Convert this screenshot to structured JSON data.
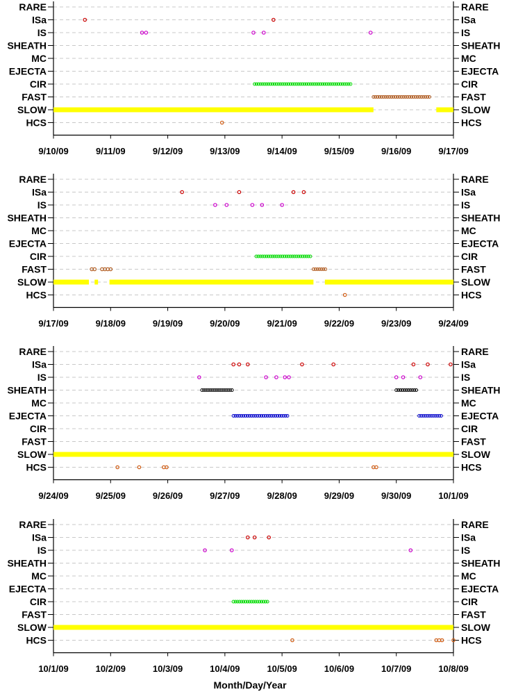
{
  "xlabel": "Month/Day/Year",
  "chart_data": [
    {
      "type": "scatter",
      "categories": [
        "RARE",
        "ISa",
        "IS",
        "SHEATH",
        "MC",
        "EJECTA",
        "CIR",
        "FAST",
        "SLOW",
        "HCS"
      ],
      "x_ticks": [
        "9/10/09",
        "9/11/09",
        "9/12/09",
        "9/13/09",
        "9/14/09",
        "9/15/09",
        "9/16/09",
        "9/17/09"
      ],
      "grid": true,
      "series": [
        {
          "category": "ISa",
          "color": "#cc0000",
          "x": [
            0.55,
            3.85
          ]
        },
        {
          "category": "IS",
          "color": "#cc00cc",
          "x": [
            1.55,
            1.62,
            3.5,
            3.68,
            5.55
          ]
        },
        {
          "category": "CIR",
          "color": "#00dd00",
          "range": [
            3.52,
            5.2
          ]
        },
        {
          "category": "FAST",
          "color": "#b05a1e",
          "range": [
            5.6,
            6.6
          ]
        },
        {
          "category": "SLOW",
          "color": "#ffff00",
          "ranges": [
            [
              0,
              5.6
            ],
            [
              6.7,
              7
            ]
          ]
        },
        {
          "category": "HCS",
          "color": "#d05a10",
          "x": [
            2.95
          ]
        }
      ]
    },
    {
      "type": "scatter",
      "categories": [
        "RARE",
        "ISa",
        "IS",
        "SHEATH",
        "MC",
        "EJECTA",
        "CIR",
        "FAST",
        "SLOW",
        "HCS"
      ],
      "x_ticks": [
        "9/17/09",
        "9/18/09",
        "9/19/09",
        "9/20/09",
        "9/21/09",
        "9/22/09",
        "9/23/09",
        "9/24/09"
      ],
      "grid": true,
      "series": [
        {
          "category": "ISa",
          "color": "#cc0000",
          "x": [
            2.25,
            3.25,
            4.2,
            4.38
          ]
        },
        {
          "category": "IS",
          "color": "#cc00cc",
          "x": [
            2.83,
            3.03,
            3.48,
            3.65,
            4.0
          ]
        },
        {
          "category": "CIR",
          "color": "#00dd00",
          "range": [
            3.55,
            4.5
          ]
        },
        {
          "category": "FAST",
          "color": "#b05a1e",
          "x": [
            0.67,
            0.72,
            0.85,
            0.9,
            0.95,
            1.0
          ],
          "range": [
            4.55,
            4.78
          ]
        },
        {
          "category": "SLOW",
          "color": "#ffff00",
          "ranges": [
            [
              0,
              0.62
            ],
            [
              0.72,
              0.78
            ],
            [
              0.98,
              4.55
            ],
            [
              4.75,
              7
            ]
          ]
        },
        {
          "category": "HCS",
          "color": "#d05a10",
          "x": [
            5.1
          ]
        }
      ]
    },
    {
      "type": "scatter",
      "categories": [
        "RARE",
        "ISa",
        "IS",
        "SHEATH",
        "MC",
        "EJECTA",
        "CIR",
        "FAST",
        "SLOW",
        "HCS"
      ],
      "x_ticks": [
        "9/24/09",
        "9/25/09",
        "9/26/09",
        "9/27/09",
        "9/28/09",
        "9/29/09",
        "9/30/09",
        "10/1/09"
      ],
      "grid": true,
      "series": [
        {
          "category": "ISa",
          "color": "#cc0000",
          "x": [
            3.15,
            3.25,
            3.4,
            4.35,
            4.9,
            6.3,
            6.55,
            6.95
          ]
        },
        {
          "category": "IS",
          "color": "#cc00cc",
          "x": [
            2.55,
            3.72,
            3.9,
            4.05,
            4.12,
            6.0,
            6.12,
            6.42
          ]
        },
        {
          "category": "SHEATH",
          "color": "#000000",
          "range": [
            2.6,
            3.15
          ]
        },
        {
          "category": "SHEATH",
          "color": "#000000",
          "range": [
            6.0,
            6.35
          ]
        },
        {
          "category": "EJECTA",
          "color": "#0000cc",
          "range": [
            3.15,
            4.12
          ]
        },
        {
          "category": "EJECTA",
          "color": "#0000cc",
          "range": [
            6.4,
            6.8
          ]
        },
        {
          "category": "SLOW",
          "color": "#ffff00",
          "ranges": [
            [
              0,
              7
            ]
          ]
        },
        {
          "category": "HCS",
          "color": "#d05a10",
          "x": [
            1.12,
            1.5,
            1.93,
            1.98,
            5.6,
            5.65
          ]
        }
      ]
    },
    {
      "type": "scatter",
      "categories": [
        "RARE",
        "ISa",
        "IS",
        "SHEATH",
        "MC",
        "EJECTA",
        "CIR",
        "FAST",
        "SLOW",
        "HCS"
      ],
      "x_ticks": [
        "10/1/09",
        "10/2/09",
        "10/3/09",
        "10/4/09",
        "10/5/09",
        "10/6/09",
        "10/7/09",
        "10/8/09"
      ],
      "grid": true,
      "series": [
        {
          "category": "ISa",
          "color": "#cc0000",
          "x": [
            3.4,
            3.52,
            3.77
          ]
        },
        {
          "category": "IS",
          "color": "#cc00cc",
          "x": [
            2.65,
            3.12,
            6.25
          ]
        },
        {
          "category": "CIR",
          "color": "#00dd00",
          "range": [
            3.15,
            3.75
          ]
        },
        {
          "category": "SLOW",
          "color": "#ffff00",
          "ranges": [
            [
              0,
              7
            ]
          ]
        },
        {
          "category": "HCS",
          "color": "#d05a10",
          "x": [
            4.18,
            6.7,
            6.75,
            6.8,
            7.0
          ]
        }
      ]
    }
  ]
}
